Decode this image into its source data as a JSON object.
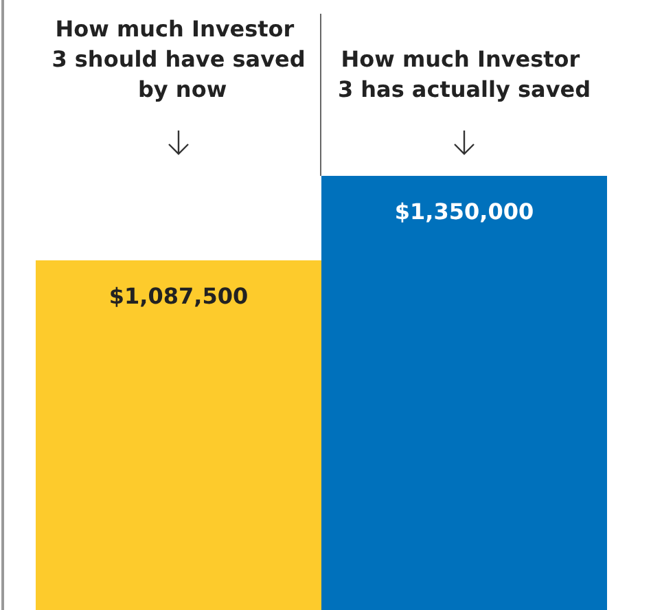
{
  "chart_data": {
    "type": "bar",
    "categories": [
      "How much Investor 3 should have saved by now",
      "How much Investor 3 has actually saved"
    ],
    "values": [
      1087500,
      1350000
    ],
    "colors": [
      "#fdcb2c",
      "#0071bc"
    ],
    "value_labels": [
      "$1,087,500",
      "$1,350,000"
    ]
  }
}
